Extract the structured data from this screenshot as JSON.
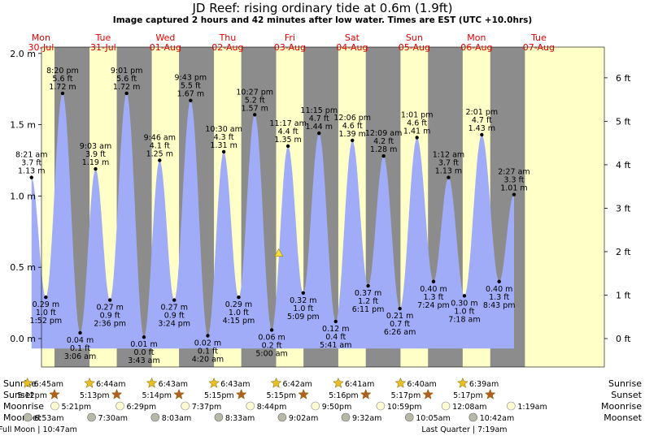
{
  "header": {
    "title": "JD Reef: rising  ordinary tide at 0.6m (1.9ft)",
    "subtitle": "Image captured 2 hours and 42 minutes after low water. Times are EST (UTC +10.0hrs)"
  },
  "colors": {
    "day": "#ffffc8",
    "night": "#8c8c8c",
    "tide": "#a0acf8",
    "date_label": "#e00000",
    "sun_icon": "#e8c020",
    "sunset_icon": "#b06020",
    "moonrise_icon": "#fffad0",
    "moonset_icon": "#b8b8a8"
  },
  "chart_data": {
    "type": "area",
    "title": "JD Reef: rising  ordinary tide at 0.6m (1.9ft)",
    "ylabel_left": "m",
    "ylabel_right": "ft",
    "ylim": [
      -0.1,
      2.05
    ],
    "yticks_m": [
      {
        "v": 0.0,
        "label": "0.0 m"
      },
      {
        "v": 0.5,
        "label": "0.5 m"
      },
      {
        "v": 1.0,
        "label": "1.0 m"
      },
      {
        "v": 1.5,
        "label": "1.5 m"
      },
      {
        "v": 2.0,
        "label": "2.0 m"
      }
    ],
    "yticks_ft": [
      {
        "v": 0,
        "label": "0 ft"
      },
      {
        "v": 1,
        "label": "1 ft"
      },
      {
        "v": 2,
        "label": "2 ft"
      },
      {
        "v": 3,
        "label": "3 ft"
      },
      {
        "v": 4,
        "label": "4 ft"
      },
      {
        "v": 5,
        "label": "5 ft"
      },
      {
        "v": 6,
        "label": "6 ft"
      }
    ],
    "days": [
      {
        "dow": "Mon",
        "date": "30-Jul"
      },
      {
        "dow": "Tue",
        "date": "31-Jul"
      },
      {
        "dow": "Wed",
        "date": "01-Aug"
      },
      {
        "dow": "Thu",
        "date": "02-Aug"
      },
      {
        "dow": "Fri",
        "date": "03-Aug"
      },
      {
        "dow": "Sat",
        "date": "04-Aug"
      },
      {
        "dow": "Sun",
        "date": "05-Aug"
      },
      {
        "dow": "Mon",
        "date": "06-Aug"
      },
      {
        "dow": "Tue",
        "date": "07-Aug"
      }
    ],
    "tides": [
      {
        "day": 0,
        "time": "8:21 am",
        "h": 8.35,
        "m": 1.13,
        "ft": "3.7 ft",
        "type": "high"
      },
      {
        "day": 0,
        "time": "1:52 pm",
        "h": 13.87,
        "m": 0.29,
        "ft": "1.0 ft",
        "type": "low"
      },
      {
        "day": 0,
        "time": "8:20 pm",
        "h": 20.33,
        "m": 1.72,
        "ft": "5.6 ft",
        "type": "high"
      },
      {
        "day": 1,
        "time": "3:06 am",
        "h": 3.1,
        "m": 0.04,
        "ft": "0.1 ft",
        "type": "low"
      },
      {
        "day": 1,
        "time": "9:03 am",
        "h": 9.05,
        "m": 1.19,
        "ft": "3.9 ft",
        "type": "high"
      },
      {
        "day": 1,
        "time": "2:36 pm",
        "h": 14.6,
        "m": 0.27,
        "ft": "0.9 ft",
        "type": "low"
      },
      {
        "day": 1,
        "time": "9:01 pm",
        "h": 21.02,
        "m": 1.72,
        "ft": "5.6 ft",
        "type": "high"
      },
      {
        "day": 2,
        "time": "3:43 am",
        "h": 3.72,
        "m": 0.01,
        "ft": "0.0 ft",
        "type": "low"
      },
      {
        "day": 2,
        "time": "9:46 am",
        "h": 9.77,
        "m": 1.25,
        "ft": "4.1 ft",
        "type": "high"
      },
      {
        "day": 2,
        "time": "3:24 pm",
        "h": 15.4,
        "m": 0.27,
        "ft": "0.9 ft",
        "type": "low"
      },
      {
        "day": 2,
        "time": "9:43 pm",
        "h": 21.72,
        "m": 1.67,
        "ft": "5.5 ft",
        "type": "high"
      },
      {
        "day": 3,
        "time": "4:20 am",
        "h": 4.33,
        "m": 0.02,
        "ft": "0.1 ft",
        "type": "low"
      },
      {
        "day": 3,
        "time": "10:30 am",
        "h": 10.5,
        "m": 1.31,
        "ft": "4.3 ft",
        "type": "high"
      },
      {
        "day": 3,
        "time": "4:15 pm",
        "h": 16.25,
        "m": 0.29,
        "ft": "1.0 ft",
        "type": "low"
      },
      {
        "day": 3,
        "time": "10:27 pm",
        "h": 22.45,
        "m": 1.57,
        "ft": "5.2 ft",
        "type": "high"
      },
      {
        "day": 4,
        "time": "5:00 am",
        "h": 5.0,
        "m": 0.06,
        "ft": "0.2 ft",
        "type": "low"
      },
      {
        "day": 4,
        "time": "11:17 am",
        "h": 11.28,
        "m": 1.35,
        "ft": "4.4 ft",
        "type": "high"
      },
      {
        "day": 4,
        "time": "5:09 pm",
        "h": 17.15,
        "m": 0.32,
        "ft": "1.0 ft",
        "type": "low"
      },
      {
        "day": 4,
        "time": "11:15 pm",
        "h": 23.25,
        "m": 1.44,
        "ft": "4.7 ft",
        "type": "high"
      },
      {
        "day": 5,
        "time": "5:41 am",
        "h": 5.68,
        "m": 0.12,
        "ft": "0.4 ft",
        "type": "low"
      },
      {
        "day": 5,
        "time": "12:06 pm",
        "h": 12.1,
        "m": 1.39,
        "ft": "4.6 ft",
        "type": "high"
      },
      {
        "day": 5,
        "time": "6:11 pm",
        "h": 18.18,
        "m": 0.37,
        "ft": "1.2 ft",
        "type": "low"
      },
      {
        "day": 6,
        "time": "12:09 am",
        "h": 0.15,
        "m": 1.28,
        "ft": "4.2 ft",
        "type": "high"
      },
      {
        "day": 6,
        "time": "6:26 am",
        "h": 6.43,
        "m": 0.21,
        "ft": "0.7 ft",
        "type": "low"
      },
      {
        "day": 6,
        "time": "1:01 pm",
        "h": 13.02,
        "m": 1.41,
        "ft": "4.6 ft",
        "type": "high"
      },
      {
        "day": 6,
        "time": "7:24 pm",
        "h": 19.4,
        "m": 0.4,
        "ft": "1.3 ft",
        "type": "low"
      },
      {
        "day": 7,
        "time": "1:12 am",
        "h": 1.2,
        "m": 1.13,
        "ft": "3.7 ft",
        "type": "high"
      },
      {
        "day": 7,
        "time": "7:18 am",
        "h": 7.3,
        "m": 0.3,
        "ft": "1.0 ft",
        "type": "low"
      },
      {
        "day": 7,
        "time": "2:01 pm",
        "h": 14.02,
        "m": 1.43,
        "ft": "4.7 ft",
        "type": "high"
      },
      {
        "day": 7,
        "time": "8:43 pm",
        "h": 20.72,
        "m": 0.4,
        "ft": "1.3 ft",
        "type": "low"
      },
      {
        "day": 8,
        "time": "2:27 am",
        "h": 2.45,
        "m": 1.01,
        "ft": "3.3 ft",
        "type": "high"
      }
    ],
    "current": {
      "day": 4,
      "h": 7.7,
      "m": 0.6
    },
    "sunrise": [
      {
        "day": 0,
        "time": "6:45am",
        "h": 6.75
      },
      {
        "day": 1,
        "time": "6:44am",
        "h": 6.73
      },
      {
        "day": 2,
        "time": "6:43am",
        "h": 6.72
      },
      {
        "day": 3,
        "time": "6:43am",
        "h": 6.72
      },
      {
        "day": 4,
        "time": "6:42am",
        "h": 6.7
      },
      {
        "day": 5,
        "time": "6:41am",
        "h": 6.68
      },
      {
        "day": 6,
        "time": "6:40am",
        "h": 6.67
      },
      {
        "day": 7,
        "time": "6:39am",
        "h": 6.65
      }
    ],
    "sunset": [
      {
        "day": 0,
        "time": "5:12pm",
        "h": 17.2
      },
      {
        "day": 1,
        "time": "5:13pm",
        "h": 17.22
      },
      {
        "day": 2,
        "time": "5:14pm",
        "h": 17.23
      },
      {
        "day": 3,
        "time": "5:15pm",
        "h": 17.25
      },
      {
        "day": 4,
        "time": "5:15pm",
        "h": 17.25
      },
      {
        "day": 5,
        "time": "5:16pm",
        "h": 17.27
      },
      {
        "day": 6,
        "time": "5:17pm",
        "h": 17.28
      },
      {
        "day": 7,
        "time": "5:17pm",
        "h": 17.28
      }
    ],
    "moonrise": [
      {
        "day": 0,
        "time": "5:21pm",
        "h": 17.35
      },
      {
        "day": 1,
        "time": "6:29pm",
        "h": 18.48
      },
      {
        "day": 2,
        "time": "7:37pm",
        "h": 19.62
      },
      {
        "day": 3,
        "time": "8:44pm",
        "h": 20.73
      },
      {
        "day": 4,
        "time": "9:50pm",
        "h": 21.83
      },
      {
        "day": 5,
        "time": "10:59pm",
        "h": 22.98
      },
      {
        "day": 7,
        "time": "12:08am",
        "h": 0.13
      },
      {
        "day": 8,
        "time": "1:19am",
        "h": 1.32
      }
    ],
    "moonset": [
      {
        "day": 0,
        "time": "6:53am",
        "h": 6.88
      },
      {
        "day": 1,
        "time": "7:30am",
        "h": 7.5
      },
      {
        "day": 2,
        "time": "8:03am",
        "h": 8.05
      },
      {
        "day": 3,
        "time": "8:33am",
        "h": 8.55
      },
      {
        "day": 4,
        "time": "9:02am",
        "h": 9.03
      },
      {
        "day": 5,
        "time": "9:32am",
        "h": 9.53
      },
      {
        "day": 6,
        "time": "10:05am",
        "h": 10.08
      },
      {
        "day": 7,
        "time": "10:42am",
        "h": 10.7
      }
    ],
    "moon_phases": [
      {
        "label": "Full Moon | 10:47am",
        "day": 0,
        "h": 10.78
      },
      {
        "label": "Last Quarter | 7:19am",
        "day": 7,
        "h": 7.32
      }
    ]
  },
  "rows": {
    "sunrise_label": "Sunrise",
    "sunset_label": "Sunset",
    "moonrise_label": "Moonrise",
    "moonset_label": "Moonset"
  }
}
